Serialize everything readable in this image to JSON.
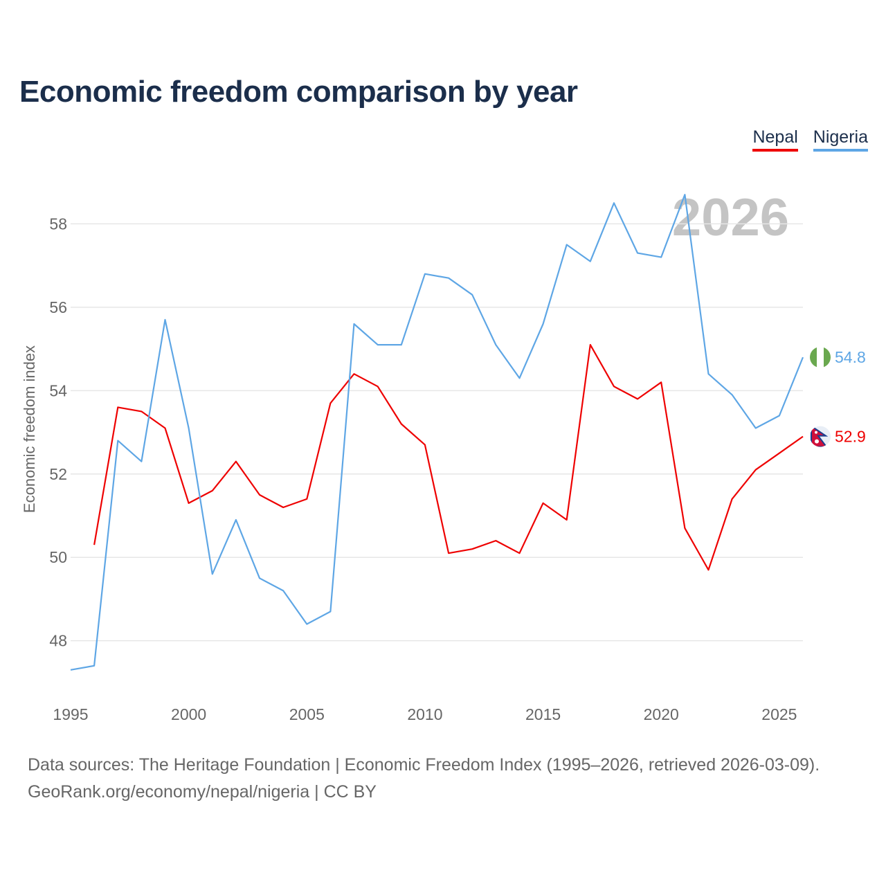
{
  "title": "Economic freedom comparison by year",
  "legend": {
    "nepal": "Nepal",
    "nigeria": "Nigeria"
  },
  "footer": {
    "line1": "Data sources: The Heritage Foundation | Economic Freedom Index (1995–2026, retrieved 2026-03-09).",
    "line2": "GeoRank.org/economy/nepal/nigeria | CC BY"
  },
  "colors": {
    "nepal": "#ee0000",
    "nigeria": "#5ea6e5",
    "grid": "#e6e6e6",
    "axis_text": "#666666",
    "watermark": "#c4c4c4"
  },
  "chart_data": {
    "type": "line",
    "title": "Economic freedom comparison by year",
    "xlabel": "",
    "ylabel": "Economic freedom index",
    "xlim": [
      1995,
      2026
    ],
    "ylim": [
      46.6,
      59.8
    ],
    "x_ticks": [
      1995,
      2000,
      2005,
      2010,
      2015,
      2020,
      2025
    ],
    "y_ticks": [
      48,
      50,
      52,
      54,
      56,
      58
    ],
    "watermark_year": "2026",
    "series": [
      {
        "name": "Nepal",
        "key": "nepal",
        "end_label": "52.9",
        "flag": "nepal-flag-icon",
        "x": [
          1996,
          1997,
          1998,
          1999,
          2000,
          2001,
          2002,
          2003,
          2004,
          2005,
          2006,
          2007,
          2008,
          2009,
          2010,
          2011,
          2012,
          2013,
          2014,
          2015,
          2016,
          2017,
          2018,
          2019,
          2020,
          2021,
          2022,
          2023,
          2024,
          2025,
          2026
        ],
        "values": [
          50.3,
          53.6,
          53.5,
          53.1,
          51.3,
          51.6,
          52.3,
          51.5,
          51.2,
          51.4,
          53.7,
          54.4,
          54.1,
          53.2,
          52.7,
          50.1,
          50.2,
          50.4,
          50.1,
          51.3,
          50.9,
          55.1,
          54.1,
          53.8,
          54.2,
          50.7,
          49.7,
          51.4,
          52.1,
          52.5,
          52.9
        ]
      },
      {
        "name": "Nigeria",
        "key": "nigeria",
        "end_label": "54.8",
        "flag": "nigeria-flag-icon",
        "x": [
          1995,
          1996,
          1997,
          1998,
          1999,
          2000,
          2001,
          2002,
          2003,
          2004,
          2005,
          2006,
          2007,
          2008,
          2009,
          2010,
          2011,
          2012,
          2013,
          2014,
          2015,
          2016,
          2017,
          2018,
          2019,
          2020,
          2021,
          2022,
          2023,
          2024,
          2025,
          2026
        ],
        "values": [
          47.3,
          47.4,
          52.8,
          52.3,
          55.7,
          53.1,
          49.6,
          50.9,
          49.5,
          49.2,
          48.4,
          48.7,
          55.6,
          55.1,
          55.1,
          56.8,
          56.7,
          56.3,
          55.1,
          54.3,
          55.6,
          57.5,
          57.1,
          58.5,
          57.3,
          57.2,
          58.7,
          54.4,
          53.9,
          53.1,
          53.4,
          54.8
        ]
      }
    ]
  }
}
